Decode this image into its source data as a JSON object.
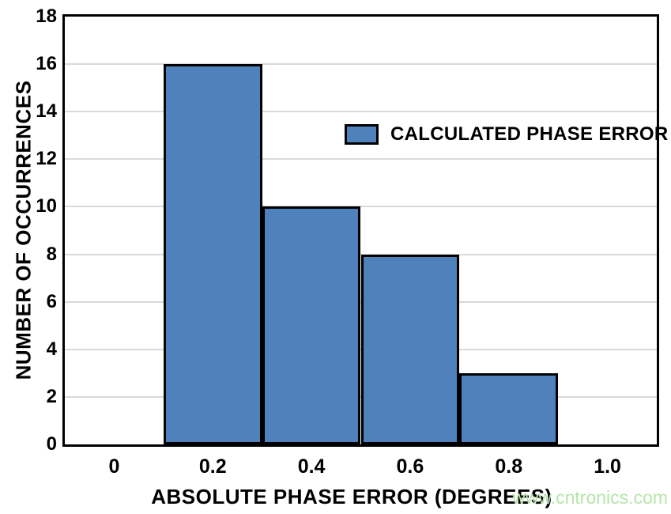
{
  "chart_data": {
    "type": "bar",
    "title": "",
    "xlabel": "ABSOLUTE PHASE ERROR (DEGREES)",
    "ylabel": "NUMBER OF OCCURRENCES",
    "xlim": [
      -0.1,
      1.1
    ],
    "ylim": [
      0,
      18
    ],
    "xticks": [
      0,
      0.2,
      0.4,
      0.6,
      0.8,
      1.0
    ],
    "xtick_labels": [
      "0",
      "0.2",
      "0.4",
      "0.6",
      "0.8",
      "1.0"
    ],
    "yticks": [
      0,
      2,
      4,
      6,
      8,
      10,
      12,
      14,
      16,
      18
    ],
    "grid": "horizontal",
    "legend": {
      "label": "CALCULATED PHASE ERROR",
      "position": "upper-middle"
    },
    "series": [
      {
        "name": "CALCULATED PHASE ERROR",
        "color": "#4F81BC",
        "bins": [
          {
            "x0": 0.1,
            "x1": 0.3,
            "count": 16
          },
          {
            "x0": 0.3,
            "x1": 0.5,
            "count": 10
          },
          {
            "x0": 0.5,
            "x1": 0.7,
            "count": 8
          },
          {
            "x0": 0.7,
            "x1": 0.9,
            "count": 3
          }
        ]
      }
    ]
  },
  "watermark": {
    "text": "www.cntronics.com",
    "color": "#b7e4aa"
  },
  "colors": {
    "bar_fill": "#4F81BC",
    "bar_border": "#000000",
    "grid": "#d9d9d9",
    "axis": "#000000",
    "background": "#ffffff"
  }
}
